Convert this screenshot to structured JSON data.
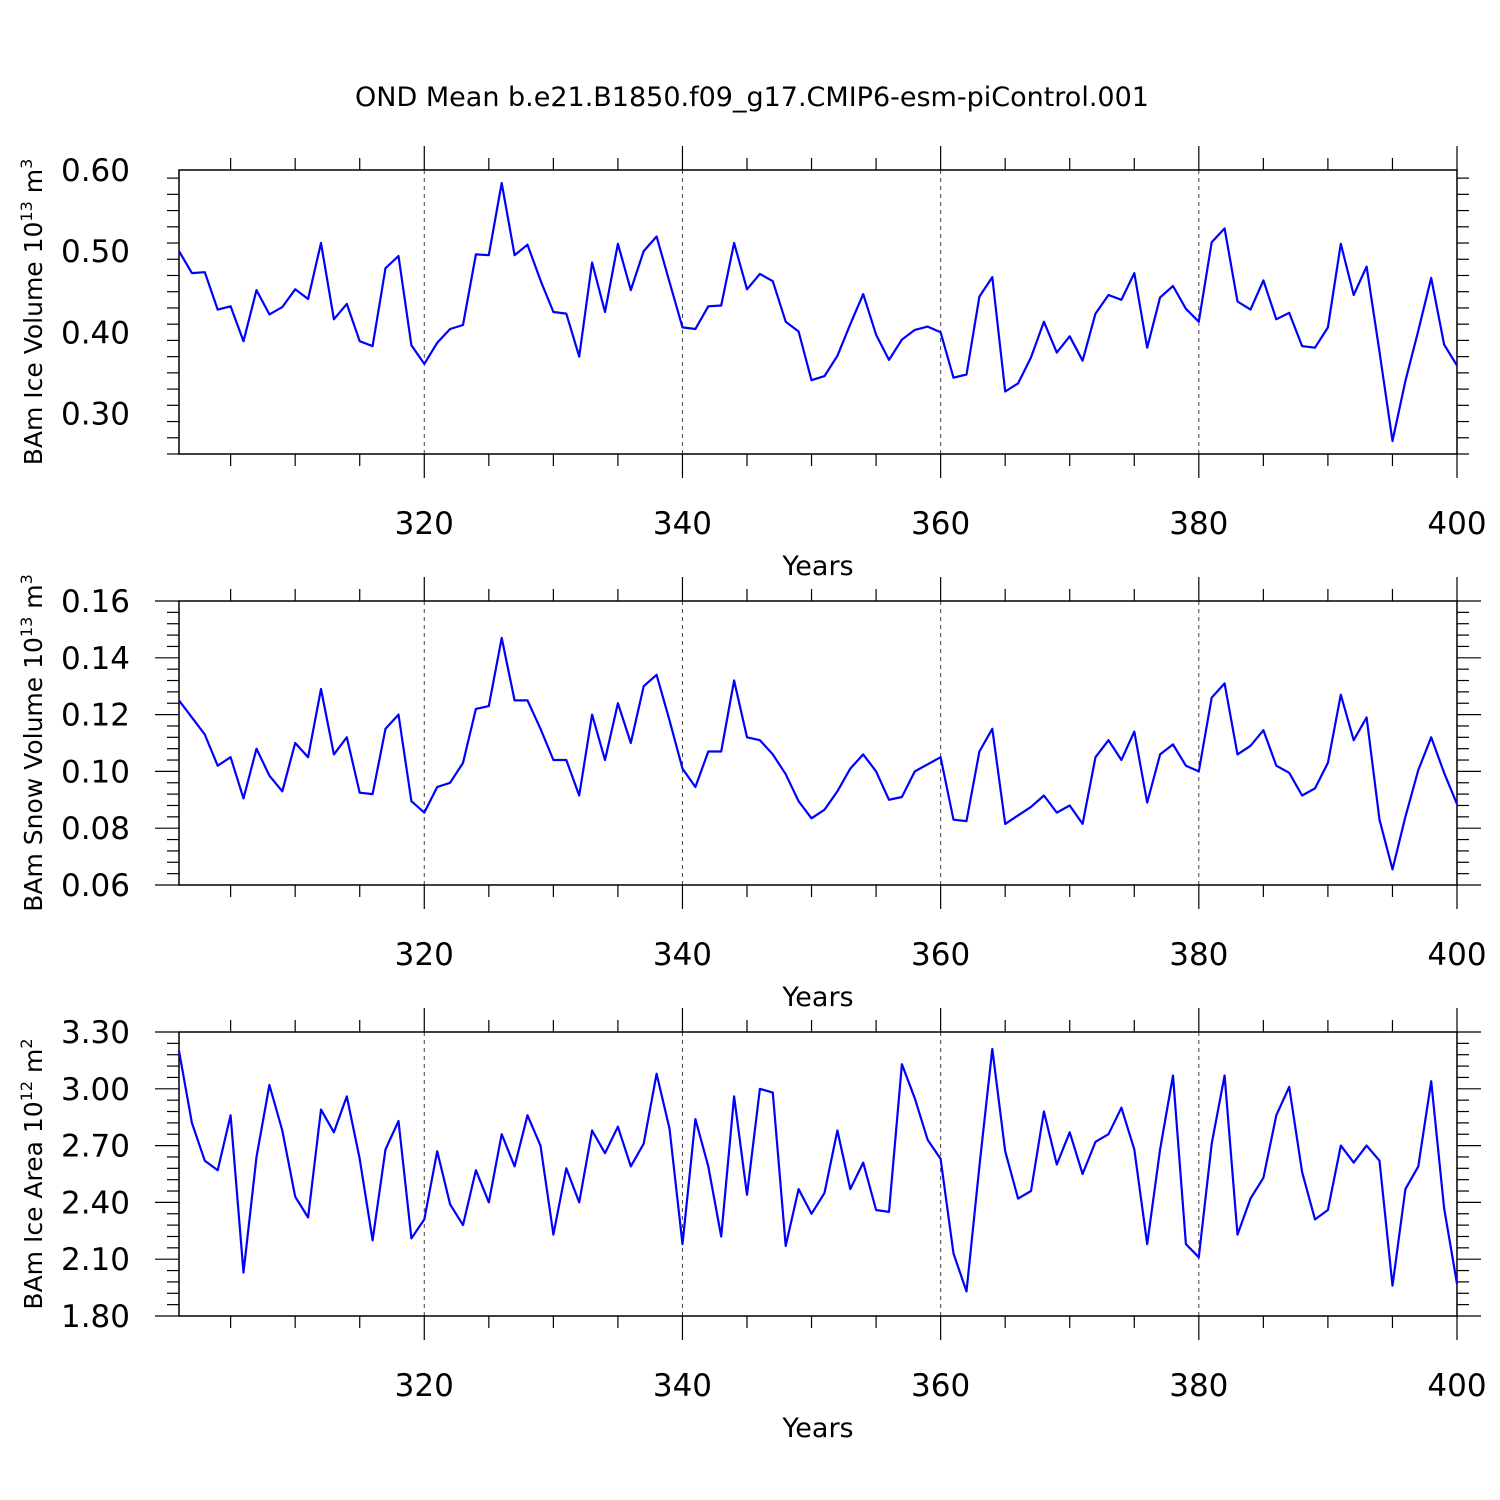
{
  "title": "OND Mean b.e21.B1850.f09_g17.CMIP6-esm-piControl.001",
  "colors": {
    "line": "#0000ff",
    "axis": "#000000",
    "grid": "#444444"
  },
  "chart_data": [
    {
      "type": "line",
      "ylabel": "BAm Ice Volume 10",
      "ylabel_exp": "13",
      "ylabel_unit": " m",
      "ylabel_unit_exp": "3",
      "xlabel": "Years",
      "xlim": [
        301,
        400
      ],
      "ylim": [
        0.25,
        0.6
      ],
      "yticks": [
        0.3,
        0.4,
        0.5,
        0.6
      ],
      "ytick_labels": [
        "0.30",
        "0.40",
        "0.50",
        "0.60"
      ],
      "xticks": [
        320,
        340,
        360,
        380,
        400
      ],
      "xtick_labels": [
        "320",
        "340",
        "360",
        "380",
        "400"
      ],
      "grid": "x dashed",
      "x_start": 301,
      "values": [
        0.5,
        0.473,
        0.474,
        0.428,
        0.432,
        0.389,
        0.452,
        0.422,
        0.431,
        0.453,
        0.441,
        0.51,
        0.416,
        0.435,
        0.389,
        0.383,
        0.479,
        0.494,
        0.384,
        0.361,
        0.387,
        0.404,
        0.409,
        0.496,
        0.495,
        0.584,
        0.495,
        0.508,
        0.464,
        0.425,
        0.423,
        0.37,
        0.486,
        0.425,
        0.509,
        0.452,
        0.5,
        0.518,
        0.462,
        0.406,
        0.404,
        0.432,
        0.433,
        0.51,
        0.453,
        0.472,
        0.463,
        0.413,
        0.401,
        0.341,
        0.346,
        0.371,
        0.41,
        0.447,
        0.397,
        0.366,
        0.391,
        0.403,
        0.407,
        0.4,
        0.344,
        0.348,
        0.444,
        0.468,
        0.327,
        0.337,
        0.369,
        0.413,
        0.375,
        0.395,
        0.365,
        0.423,
        0.446,
        0.44,
        0.473,
        0.381,
        0.443,
        0.457,
        0.429,
        0.413,
        0.511,
        0.528,
        0.438,
        0.428,
        0.464,
        0.416,
        0.424,
        0.383,
        0.381,
        0.406,
        0.509,
        0.446,
        0.481,
        0.376,
        0.266,
        0.34,
        0.402,
        0.467,
        0.385,
        0.359
      ]
    },
    {
      "type": "line",
      "ylabel": "BAm Snow Volume 10",
      "ylabel_exp": "13",
      "ylabel_unit": " m",
      "ylabel_unit_exp": "3",
      "xlabel": "Years",
      "xlim": [
        301,
        400
      ],
      "ylim": [
        0.06,
        0.16
      ],
      "yticks": [
        0.06,
        0.08,
        0.1,
        0.12,
        0.14,
        0.16
      ],
      "ytick_labels": [
        "0.06",
        "0.08",
        "0.10",
        "0.12",
        "0.14",
        "0.16"
      ],
      "xticks": [
        320,
        340,
        360,
        380,
        400
      ],
      "xtick_labels": [
        "320",
        "340",
        "360",
        "380",
        "400"
      ],
      "grid": "x dashed",
      "x_start": 301,
      "values": [
        0.125,
        0.119,
        0.113,
        0.102,
        0.105,
        0.0905,
        0.108,
        0.0985,
        0.093,
        0.11,
        0.105,
        0.129,
        0.106,
        0.112,
        0.0925,
        0.092,
        0.115,
        0.12,
        0.0895,
        0.0855,
        0.0945,
        0.096,
        0.103,
        0.122,
        0.123,
        0.147,
        0.125,
        0.125,
        0.115,
        0.104,
        0.104,
        0.0915,
        0.12,
        0.104,
        0.124,
        0.11,
        0.13,
        0.134,
        0.118,
        0.101,
        0.0945,
        0.107,
        0.107,
        0.132,
        0.112,
        0.111,
        0.106,
        0.099,
        0.0895,
        0.0835,
        0.0865,
        0.093,
        0.101,
        0.106,
        0.1,
        0.09,
        0.091,
        0.1,
        0.1025,
        0.105,
        0.083,
        0.0825,
        0.107,
        0.115,
        0.0815,
        0.0845,
        0.0875,
        0.0915,
        0.0855,
        0.088,
        0.0815,
        0.105,
        0.111,
        0.104,
        0.114,
        0.089,
        0.106,
        0.1095,
        0.102,
        0.1,
        0.126,
        0.131,
        0.106,
        0.109,
        0.1145,
        0.102,
        0.0995,
        0.0915,
        0.094,
        0.103,
        0.127,
        0.111,
        0.119,
        0.083,
        0.0655,
        0.084,
        0.1005,
        0.112,
        0.0995,
        0.0885
      ]
    },
    {
      "type": "line",
      "ylabel": "BAm Ice Area 10",
      "ylabel_exp": "12",
      "ylabel_unit": " m",
      "ylabel_unit_exp": "2",
      "xlabel": "Years",
      "xlim": [
        301,
        400
      ],
      "ylim": [
        1.8,
        3.3
      ],
      "yticks": [
        1.8,
        2.1,
        2.4,
        2.7,
        3.0,
        3.3
      ],
      "ytick_labels": [
        "1.80",
        "2.10",
        "2.40",
        "2.70",
        "3.00",
        "3.30"
      ],
      "xticks": [
        320,
        340,
        360,
        380,
        400
      ],
      "xtick_labels": [
        "320",
        "340",
        "360",
        "380",
        "400"
      ],
      "grid": "x dashed",
      "x_start": 301,
      "values": [
        3.2,
        2.82,
        2.62,
        2.57,
        2.86,
        2.03,
        2.64,
        3.02,
        2.78,
        2.43,
        2.32,
        2.89,
        2.77,
        2.96,
        2.63,
        2.2,
        2.68,
        2.83,
        2.21,
        2.31,
        2.67,
        2.39,
        2.28,
        2.57,
        2.4,
        2.76,
        2.59,
        2.86,
        2.7,
        2.23,
        2.58,
        2.4,
        2.78,
        2.66,
        2.8,
        2.59,
        2.71,
        3.08,
        2.79,
        2.18,
        2.84,
        2.59,
        2.22,
        2.96,
        2.44,
        3.0,
        2.98,
        2.17,
        2.47,
        2.34,
        2.45,
        2.78,
        2.47,
        2.61,
        2.36,
        2.35,
        3.13,
        2.95,
        2.73,
        2.63,
        2.13,
        1.93,
        2.59,
        3.21,
        2.67,
        2.42,
        2.46,
        2.88,
        2.6,
        2.77,
        2.55,
        2.72,
        2.76,
        2.9,
        2.68,
        2.18,
        2.68,
        3.07,
        2.18,
        2.11,
        2.71,
        3.07,
        2.23,
        2.42,
        2.53,
        2.86,
        3.01,
        2.56,
        2.31,
        2.36,
        2.7,
        2.61,
        2.7,
        2.62,
        1.96,
        2.47,
        2.59,
        3.04,
        2.37,
        1.97
      ]
    }
  ]
}
